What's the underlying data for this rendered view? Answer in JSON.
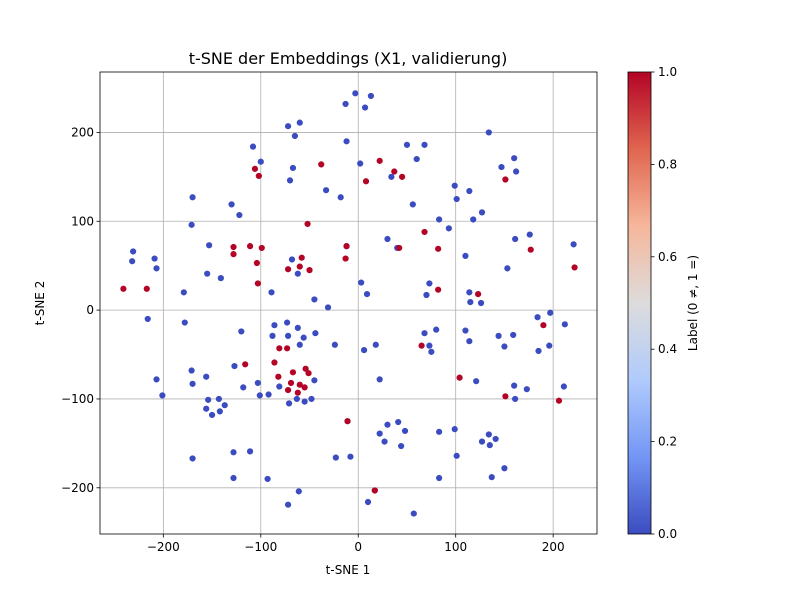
{
  "chart_data": {
    "type": "scatter",
    "title": "t-SNE der Embeddings (X1, validierung)",
    "xlabel": "t-SNE 1",
    "ylabel": "t-SNE 2",
    "xlim": [
      -265,
      245
    ],
    "ylim": [
      -252,
      268
    ],
    "xticks": [
      -200,
      -100,
      0,
      100,
      200
    ],
    "yticks": [
      -200,
      -100,
      0,
      100,
      200
    ],
    "xtick_labels": [
      "−200",
      "−100",
      "0",
      "100",
      "200"
    ],
    "ytick_labels": [
      "−200",
      "−100",
      "0",
      "100",
      "200"
    ],
    "grid": true,
    "colormap": "coolwarm",
    "colormap_stops": [
      "#3b4cc0",
      "#7396f5",
      "#b0cbfc",
      "#dddcdc",
      "#f6b79b",
      "#e0654f",
      "#b40426"
    ],
    "colorbar": {
      "label": "Label (0 ≠, 1 =)",
      "range": [
        0,
        1
      ],
      "ticks": [
        0.0,
        0.2,
        0.4,
        0.6,
        0.8,
        1.0
      ],
      "tick_labels": [
        "0.0",
        "0.2",
        "0.4",
        "0.6",
        "0.8",
        "1.0"
      ]
    },
    "points": [
      [
        -3,
        244,
        0
      ],
      [
        7,
        228,
        0
      ],
      [
        -13,
        232,
        0
      ],
      [
        13,
        241,
        0
      ],
      [
        -72,
        207,
        0
      ],
      [
        -60,
        211,
        0
      ],
      [
        -65,
        196,
        0
      ],
      [
        -108,
        184,
        0
      ],
      [
        -12,
        190,
        0
      ],
      [
        134,
        200,
        0
      ],
      [
        -100,
        167,
        0
      ],
      [
        -106,
        159,
        1
      ],
      [
        -102,
        151,
        1
      ],
      [
        -67,
        160,
        0
      ],
      [
        -70,
        146,
        0
      ],
      [
        -38,
        164,
        1
      ],
      [
        2,
        165,
        0
      ],
      [
        22,
        168,
        1
      ],
      [
        34,
        150,
        0
      ],
      [
        37,
        156,
        1
      ],
      [
        45,
        150,
        1
      ],
      [
        50,
        186,
        0
      ],
      [
        60,
        170,
        0
      ],
      [
        68,
        186,
        0
      ],
      [
        147,
        161,
        0
      ],
      [
        160,
        171,
        0
      ],
      [
        162,
        156,
        0
      ],
      [
        151,
        147,
        1
      ],
      [
        8,
        145,
        1
      ],
      [
        -170,
        127,
        0
      ],
      [
        -33,
        135,
        0
      ],
      [
        -18,
        127,
        0
      ],
      [
        99,
        140,
        0
      ],
      [
        114,
        134,
        0
      ],
      [
        -130,
        119,
        0
      ],
      [
        -122,
        107,
        0
      ],
      [
        56,
        119,
        0
      ],
      [
        101,
        125,
        0
      ],
      [
        127,
        110,
        0
      ],
      [
        -171,
        96,
        0
      ],
      [
        -52,
        97,
        1
      ],
      [
        83,
        102,
        0
      ],
      [
        93,
        92,
        0
      ],
      [
        118,
        102,
        0
      ],
      [
        68,
        88,
        1
      ],
      [
        30,
        80,
        0
      ],
      [
        161,
        80,
        0
      ],
      [
        176,
        85,
        0
      ],
      [
        -153,
        73,
        0
      ],
      [
        -128,
        71,
        1
      ],
      [
        -111,
        72,
        1
      ],
      [
        -99,
        70,
        1
      ],
      [
        -128,
        63,
        1
      ],
      [
        -12,
        72,
        0
      ],
      [
        -12,
        72,
        1
      ],
      [
        40,
        70,
        0
      ],
      [
        42,
        70,
        1
      ],
      [
        82,
        69,
        1
      ],
      [
        177,
        68,
        1
      ],
      [
        221,
        74,
        0
      ],
      [
        -231,
        66,
        0
      ],
      [
        -232,
        55,
        0
      ],
      [
        -209,
        58,
        0
      ],
      [
        -207,
        47,
        0
      ],
      [
        -104,
        53,
        1
      ],
      [
        -68,
        57,
        0
      ],
      [
        -58,
        59,
        1
      ],
      [
        -60,
        49,
        1
      ],
      [
        -72,
        46,
        1
      ],
      [
        -62,
        41,
        0
      ],
      [
        -50,
        45,
        1
      ],
      [
        -13,
        58,
        1
      ],
      [
        110,
        61,
        0
      ],
      [
        153,
        47,
        0
      ],
      [
        222,
        48,
        1
      ],
      [
        -155,
        41,
        0
      ],
      [
        -141,
        36,
        0
      ],
      [
        -103,
        30,
        1
      ],
      [
        3,
        31,
        0
      ],
      [
        73,
        30,
        0
      ],
      [
        -241,
        24,
        1
      ],
      [
        -217,
        24,
        1
      ],
      [
        -179,
        20,
        0
      ],
      [
        -89,
        20,
        0
      ],
      [
        -45,
        12,
        0
      ],
      [
        9,
        18,
        0
      ],
      [
        82,
        23,
        1
      ],
      [
        70,
        17,
        0
      ],
      [
        114,
        20,
        0
      ],
      [
        115,
        9,
        0
      ],
      [
        123,
        18,
        1
      ],
      [
        126,
        8,
        0
      ],
      [
        -31,
        3,
        0
      ],
      [
        -216,
        -10,
        0
      ],
      [
        -178,
        -14,
        0
      ],
      [
        -86,
        -17,
        0
      ],
      [
        -73,
        -14,
        0
      ],
      [
        -62,
        -20,
        0
      ],
      [
        -56,
        -31,
        0
      ],
      [
        -72,
        -29,
        0
      ],
      [
        -88,
        -29,
        0
      ],
      [
        -120,
        -24,
        0
      ],
      [
        -44,
        -26,
        0
      ],
      [
        -24,
        -39,
        0
      ],
      [
        6,
        -45,
        0
      ],
      [
        18,
        -39,
        0
      ],
      [
        68,
        -26,
        0
      ],
      [
        80,
        -22,
        0
      ],
      [
        73,
        -40,
        0
      ],
      [
        65,
        -40,
        1
      ],
      [
        75,
        -47,
        0
      ],
      [
        110,
        -23,
        0
      ],
      [
        114,
        -35,
        0
      ],
      [
        144,
        -29,
        0
      ],
      [
        159,
        -28,
        0
      ],
      [
        150,
        -41,
        0
      ],
      [
        184,
        -8,
        0
      ],
      [
        190,
        -17,
        1
      ],
      [
        197,
        -3,
        0
      ],
      [
        212,
        -16,
        0
      ],
      [
        196,
        -40,
        0
      ],
      [
        185,
        -46,
        0
      ],
      [
        -171,
        -68,
        0
      ],
      [
        -170,
        -83,
        0
      ],
      [
        -156,
        -75,
        0
      ],
      [
        -127,
        -63,
        0
      ],
      [
        -116,
        -61,
        1
      ],
      [
        -86,
        -59,
        1
      ],
      [
        -81,
        -43,
        1
      ],
      [
        -73,
        -43,
        1
      ],
      [
        -60,
        -39,
        0
      ],
      [
        -82,
        -75,
        1
      ],
      [
        -67,
        -70,
        1
      ],
      [
        -54,
        -66,
        1
      ],
      [
        -69,
        -82,
        1
      ],
      [
        -60,
        -84,
        1
      ],
      [
        -51,
        -71,
        1
      ],
      [
        -45,
        -79,
        0
      ],
      [
        -81,
        -86,
        0
      ],
      [
        -72,
        -90,
        1
      ],
      [
        -62,
        -93,
        1
      ],
      [
        -55,
        -87,
        1
      ],
      [
        -63,
        -100,
        0
      ],
      [
        -55,
        -103,
        0
      ],
      [
        -48,
        -100,
        0
      ],
      [
        -71,
        -105,
        0
      ],
      [
        -92,
        -95,
        0
      ],
      [
        -101,
        -96,
        0
      ],
      [
        -118,
        -87,
        0
      ],
      [
        -103,
        -82,
        0
      ],
      [
        22,
        -78,
        0
      ],
      [
        104,
        -76,
        1
      ],
      [
        121,
        -80,
        0
      ],
      [
        160,
        -85,
        0
      ],
      [
        173,
        -89,
        0
      ],
      [
        161,
        -100,
        0
      ],
      [
        151,
        -97,
        1
      ],
      [
        211,
        -86,
        0
      ],
      [
        206,
        -102,
        1
      ],
      [
        -207,
        -78,
        0
      ],
      [
        -201,
        -96,
        0
      ],
      [
        -154,
        -101,
        0
      ],
      [
        -143,
        -100,
        0
      ],
      [
        -137,
        -107,
        0
      ],
      [
        -142,
        -114,
        0
      ],
      [
        -156,
        -111,
        0
      ],
      [
        -150,
        -118,
        0
      ],
      [
        -11,
        -125,
        0
      ],
      [
        -11,
        -125,
        1
      ],
      [
        -170,
        -167,
        0
      ],
      [
        -128,
        -160,
        0
      ],
      [
        -111,
        -159,
        0
      ],
      [
        -128,
        -189,
        0
      ],
      [
        -93,
        -190,
        0
      ],
      [
        -23,
        -166,
        0
      ],
      [
        -8,
        -165,
        0
      ],
      [
        22,
        -139,
        0
      ],
      [
        30,
        -129,
        0
      ],
      [
        41,
        -126,
        0
      ],
      [
        48,
        -136,
        0
      ],
      [
        27,
        -148,
        0
      ],
      [
        44,
        -153,
        0
      ],
      [
        83,
        -137,
        0
      ],
      [
        99,
        -134,
        0
      ],
      [
        101,
        -164,
        0
      ],
      [
        127,
        -148,
        0
      ],
      [
        134,
        -140,
        0
      ],
      [
        135,
        -152,
        0
      ],
      [
        141,
        -145,
        0
      ],
      [
        150,
        -178,
        0
      ],
      [
        137,
        -188,
        0
      ],
      [
        83,
        -189,
        0
      ],
      [
        -72,
        -219,
        0
      ],
      [
        -61,
        -204,
        0
      ],
      [
        10,
        -216,
        0
      ],
      [
        17,
        -203,
        0
      ],
      [
        17,
        -203,
        1
      ],
      [
        57,
        -229,
        0
      ]
    ]
  }
}
